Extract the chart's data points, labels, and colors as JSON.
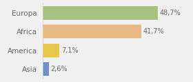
{
  "categories": [
    "Europa",
    "Africa",
    "America",
    "Asia"
  ],
  "values": [
    48.7,
    41.7,
    7.1,
    2.6
  ],
  "labels": [
    "48,7%",
    "41,7%",
    "7,1%",
    "2,6%"
  ],
  "bar_colors": [
    "#a8c080",
    "#e8b882",
    "#e8c84a",
    "#7090c8"
  ],
  "background_color": "#f0f0f0",
  "xlim": [
    0,
    62
  ],
  "figsize": [
    2.8,
    1.2
  ],
  "dpi": 100,
  "bar_height": 0.72
}
